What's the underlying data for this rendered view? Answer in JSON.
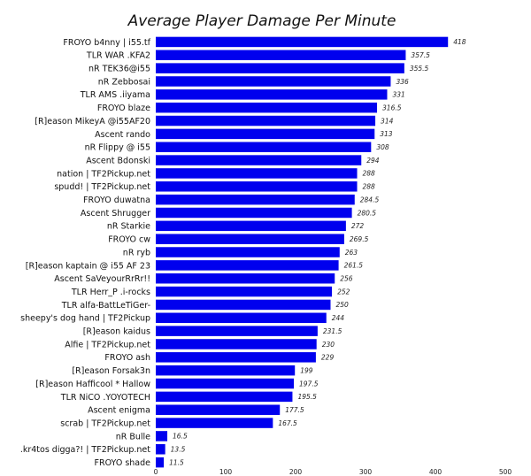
{
  "chart_data": {
    "type": "bar",
    "orientation": "horizontal",
    "title": "Average Player Damage Per Minute",
    "xlabel": "",
    "ylabel": "",
    "xlim": [
      0,
      500
    ],
    "xticks": [
      0,
      100,
      200,
      300,
      400,
      500
    ],
    "grid": false,
    "bar_color": "#0000ee",
    "categories": [
      "FROYO b4nny | i55.tf",
      "TLR WAR .KFA2",
      "nR TEK36@i55",
      "nR Zebbosai",
      "TLR AMS .iiyama",
      "FROYO blaze",
      "[R]eason MikeyA @i55AF20",
      "Ascent rando",
      "nR Flippy @ i55",
      "Ascent Bdonski",
      "nation | TF2Pickup.net",
      "spudd! | TF2Pickup.net",
      "FROYO duwatna",
      "Ascent Shrugger",
      "nR Starkie",
      "FROYO cw",
      "nR ryb",
      "[R]eason kaptain @ i55 AF 23",
      "Ascent SaVeyourRrRr!!",
      "TLR Herr_P .i-rocks",
      "TLR alfa-BattLeTiGer-",
      "sheepy's dog hand | TF2Pickup",
      "[R]eason kaidus",
      "Alfie | TF2Pickup.net",
      "FROYO ash",
      "[R]eason Forsak3n",
      "[R]eason Hafficool * Hallow",
      "TLR NiCO .YOYOTECH",
      "Ascent enigma",
      "scrab | TF2Pickup.net",
      "nR Bulle",
      ".kr4tos digga?! | TF2Pickup.net",
      "FROYO shade"
    ],
    "values": [
      418,
      357.5,
      355.5,
      336,
      331,
      316.5,
      314,
      313,
      308,
      294,
      288,
      288,
      284.5,
      280.5,
      272,
      269.5,
      263,
      261.5,
      256,
      252,
      250,
      244,
      231.5,
      230,
      229,
      199,
      197.5,
      195.5,
      177.5,
      167.5,
      16.5,
      13.5,
      11.5
    ]
  }
}
